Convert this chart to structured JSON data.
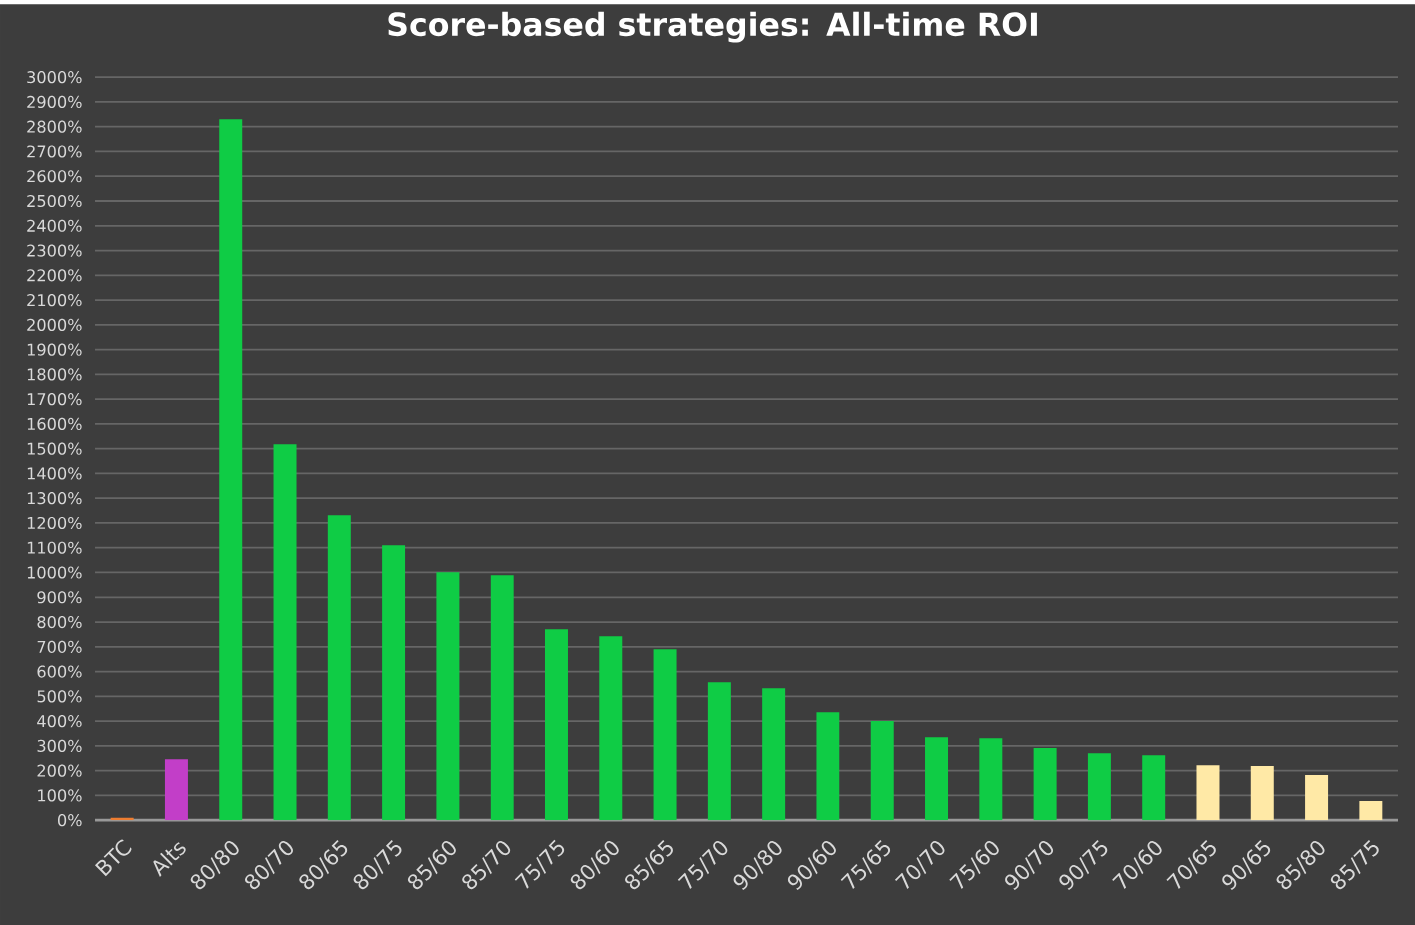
{
  "chart_data": {
    "type": "bar",
    "title": "Score-based strategies: All-time ROI",
    "categories": [
      "BTC",
      "Alts",
      "80/80",
      "80/70",
      "80/65",
      "80/75",
      "85/60",
      "85/70",
      "75/75",
      "80/60",
      "85/65",
      "75/70",
      "90/80",
      "90/60",
      "75/65",
      "70/70",
      "75/60",
      "90/70",
      "90/75",
      "70/60",
      "70/65",
      "90/65",
      "85/80",
      "85/75"
    ],
    "values": [
      10,
      246,
      2830,
      1518,
      1231,
      1110,
      1001,
      989,
      771,
      743,
      690,
      557,
      533,
      436,
      400,
      335,
      331,
      291,
      270,
      262,
      222,
      219,
      182,
      77
    ],
    "colors": [
      "#ed7d31",
      "#c23ec8",
      "#0fcc45",
      "#0fcc45",
      "#0fcc45",
      "#0fcc45",
      "#0fcc45",
      "#0fcc45",
      "#0fcc45",
      "#0fcc45",
      "#0fcc45",
      "#0fcc45",
      "#0fcc45",
      "#0fcc45",
      "#0fcc45",
      "#0fcc45",
      "#0fcc45",
      "#0fcc45",
      "#0fcc45",
      "#0fcc45",
      "#ffe9a6",
      "#ffe9a6",
      "#ffe9a6",
      "#ffe9a6"
    ],
    "ylim": [
      0,
      3000
    ],
    "yticks": [
      {
        "value": 0,
        "label": "0%"
      },
      {
        "value": 100,
        "label": "100%"
      },
      {
        "value": 200,
        "label": "200%"
      },
      {
        "value": 300,
        "label": "300%"
      },
      {
        "value": 400,
        "label": "400%"
      },
      {
        "value": 500,
        "label": "500%"
      },
      {
        "value": 600,
        "label": "600%"
      },
      {
        "value": 700,
        "label": "700%"
      },
      {
        "value": 800,
        "label": "800%"
      },
      {
        "value": 900,
        "label": "900%"
      },
      {
        "value": 1000,
        "label": "1000%"
      },
      {
        "value": 1100,
        "label": "1100%"
      },
      {
        "value": 1200,
        "label": "1200%"
      },
      {
        "value": 1300,
        "label": "1300%"
      },
      {
        "value": 1400,
        "label": "1400%"
      },
      {
        "value": 1500,
        "label": "1500%"
      },
      {
        "value": 1600,
        "label": "1600%"
      },
      {
        "value": 1700,
        "label": "1700%"
      },
      {
        "value": 1800,
        "label": "1800%"
      },
      {
        "value": 1900,
        "label": "1900%"
      },
      {
        "value": 2000,
        "label": "2000%"
      },
      {
        "value": 2100,
        "label": "2100%"
      },
      {
        "value": 2200,
        "label": "2200%"
      },
      {
        "value": 2300,
        "label": "2300%"
      },
      {
        "value": 2400,
        "label": "2400%"
      },
      {
        "value": 2500,
        "label": "2500%"
      },
      {
        "value": 2600,
        "label": "2600%"
      },
      {
        "value": 2700,
        "label": "2700%"
      },
      {
        "value": 2800,
        "label": "2800%"
      },
      {
        "value": 2900,
        "label": "2900%"
      },
      {
        "value": 3000,
        "label": "3000%"
      }
    ],
    "grid": "y"
  }
}
